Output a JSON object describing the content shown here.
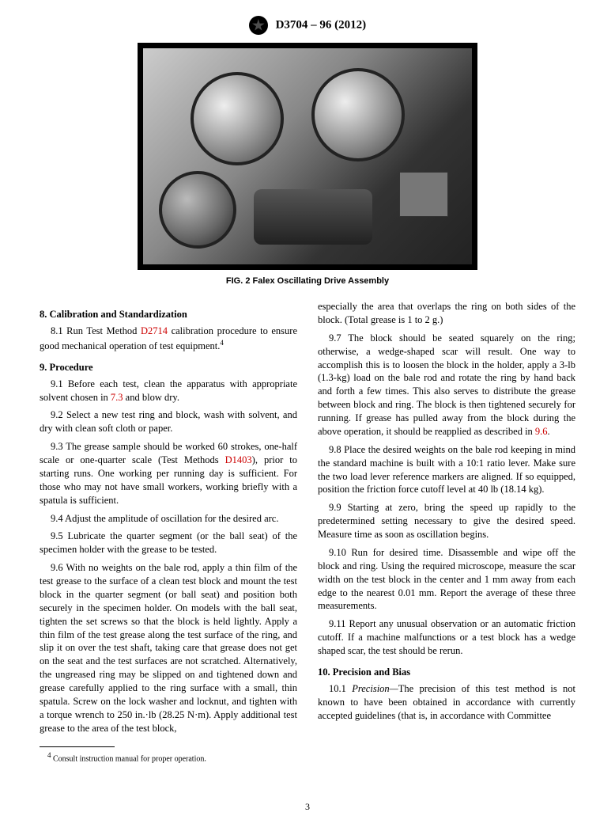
{
  "header": {
    "doc_id": "D3704 – 96 (2012)"
  },
  "figure": {
    "caption": "FIG. 2  Falex Oscillating Drive Assembly"
  },
  "left_column": {
    "sec8_title": "8.  Calibration and Standardization",
    "p8_1_a": "8.1 Run Test Method ",
    "p8_1_link": "D2714",
    "p8_1_b": " calibration procedure to ensure good mechanical operation of test equipment.",
    "sec9_title": "9.  Procedure",
    "p9_1_a": "9.1 Before each test, clean the apparatus with appropriate solvent chosen in ",
    "p9_1_link": "7.3",
    "p9_1_b": " and blow dry.",
    "p9_2": "9.2 Select a new test ring and block, wash with solvent, and dry with clean soft cloth or paper.",
    "p9_3_a": "9.3 The grease sample should be worked 60 strokes, one-half scale or one-quarter scale (Test Methods ",
    "p9_3_link": "D1403",
    "p9_3_b": "), prior to starting runs. One working per running day is sufficient. For those who may not have small workers, working briefly with a spatula is sufficient.",
    "p9_4": "9.4 Adjust the amplitude of oscillation for the desired arc.",
    "p9_5": "9.5 Lubricate the quarter segment (or the ball seat) of the specimen holder with the grease to be tested.",
    "p9_6": "9.6 With no weights on the bale rod, apply a thin film of the test grease to the surface of a clean test block and mount the test block in the quarter segment (or ball seat) and position both securely in the specimen holder. On models with the ball seat, tighten the set screws so that the block is held lightly. Apply a thin film of the test grease along the test surface of the ring, and slip it on over the test shaft, taking care that grease does not get on the seat and the test surfaces are not scratched. Alternatively, the ungreased ring may be slipped on and tightened down and grease carefully applied to the ring surface with a small, thin spatula. Screw on the lock washer and locknut, and tighten with a torque wrench to 250 in.·lb (28.25 N·m). Apply additional test grease to the area of the test block,",
    "footnote_marker": "4",
    "footnote_text": " Consult instruction manual for proper operation."
  },
  "right_column": {
    "p_cont": "especially the area that overlaps the ring on both sides of the block. (Total grease is 1 to 2 g.)",
    "p9_7_a": "9.7 The block should be seated squarely on the ring; otherwise, a wedge-shaped scar will result. One way to accomplish this is to loosen the block in the holder, apply a 3-lb (1.3-kg) load on the bale rod and rotate the ring by hand back and forth a few times. This also serves to distribute the grease between block and ring. The block is then tightened securely for running. If grease has pulled away from the block during the above operation, it should be reapplied as described in ",
    "p9_7_link": "9.6",
    "p9_7_b": ".",
    "p9_8": "9.8 Place the desired weights on the bale rod keeping in mind the standard machine is built with a 10:1 ratio lever. Make sure the two load lever reference markers are aligned. If so equipped, position the friction force cutoff level at 40 lb (18.14 kg).",
    "p9_9": "9.9 Starting at zero, bring the speed up rapidly to the predetermined setting necessary to give the desired speed. Measure time as soon as oscillation begins.",
    "p9_10": "9.10 Run for desired time. Disassemble and wipe off the block and ring. Using the required microscope, measure the scar width on the test block in the center and 1 mm away from each edge to the nearest 0.01 mm. Report the average of these three measurements.",
    "p9_11": "9.11 Report any unusual observation or an automatic friction cutoff. If a machine malfunctions or a test block has a wedge shaped scar, the test should be rerun.",
    "sec10_title": "10.  Precision and Bias",
    "p10_1_label": "10.1 ",
    "p10_1_em": "Precision—",
    "p10_1_body": "The precision of this test method is not known to have been obtained in accordance with currently accepted guidelines (that is, in accordance with Committee"
  },
  "page_number": "3",
  "colors": {
    "link": "#cc0000",
    "text": "#000000",
    "background": "#ffffff"
  }
}
